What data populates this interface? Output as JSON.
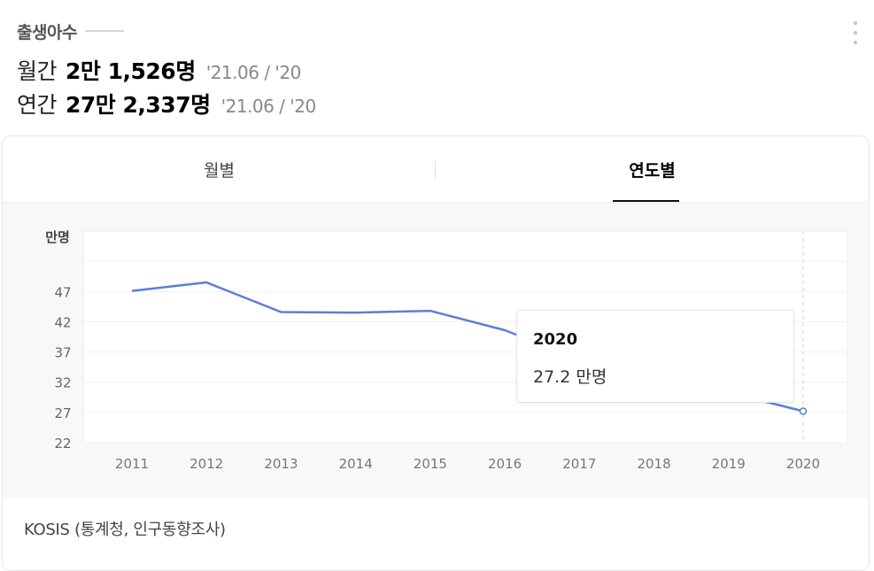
{
  "header": {
    "title": "출생아수",
    "monthly": {
      "label": "월간",
      "value": "2만 1,526명",
      "period": "'21.06 / '20"
    },
    "yearly": {
      "label": "연간",
      "value": "27만 2,337명",
      "period": "'21.06 / '20"
    },
    "more_icon": "more-vertical-icon"
  },
  "tabs": [
    {
      "label": "월별",
      "selected": false
    },
    {
      "label": "연도별",
      "selected": true
    }
  ],
  "chart_data": {
    "type": "line",
    "title": "",
    "xlabel": "",
    "ylabel": "만명",
    "x": [
      "2011",
      "2012",
      "2013",
      "2014",
      "2015",
      "2016",
      "2017",
      "2018",
      "2019",
      "2020"
    ],
    "series": [
      {
        "name": "",
        "values": [
          47.1,
          48.5,
          43.6,
          43.5,
          43.8,
          40.6,
          35.8,
          32.7,
          30.3,
          27.2
        ],
        "color": "#5a7fd6"
      }
    ],
    "yticks": [
      22,
      27,
      32,
      37,
      42,
      47
    ],
    "ylim": [
      22,
      57
    ],
    "grid": true,
    "tooltip": {
      "x": "2020",
      "value": "27.2 만명"
    }
  },
  "source": "KOSIS (통계청, 인구동향조사)"
}
